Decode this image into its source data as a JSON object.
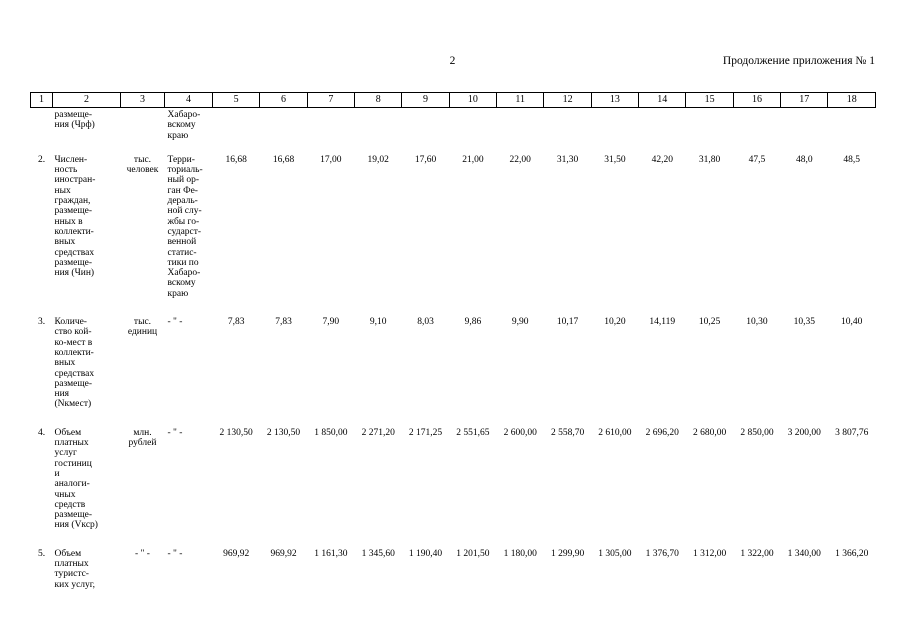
{
  "page": {
    "number": "2",
    "continuation_note": "Продолжение приложения № 1"
  },
  "table": {
    "column_numbers": [
      "1",
      "2",
      "3",
      "4",
      "5",
      "6",
      "7",
      "8",
      "9",
      "10",
      "11",
      "12",
      "13",
      "14",
      "15",
      "16",
      "17",
      "18"
    ],
    "rows": [
      {
        "num": "",
        "indicator": "размеще-\nния (Чрф)",
        "unit": "",
        "source": "Хабаро-\nвскому\nкраю",
        "values": [
          "",
          "",
          "",
          "",
          "",
          "",
          "",
          "",
          "",
          "",
          "",
          "",
          "",
          ""
        ]
      },
      {
        "num": "2.",
        "indicator": "Числен-\nность\nиностран-\nных\nграждан,\nразмеще-\nнных в\nколлекти-\nвных\nсредствах\nразмеще-\nния (Чин)",
        "unit": "тыс.\nчеловек",
        "source": "Терри-\nториаль-\nный ор-\nган Фе-\nдераль-\nной слу-\nжбы го-\nсударст-\nвенной\nстатис-\nтики по\nХабаро-\nвскому\nкраю",
        "values": [
          "16,68",
          "16,68",
          "17,00",
          "19,02",
          "17,60",
          "21,00",
          "22,00",
          "31,30",
          "31,50",
          "42,20",
          "31,80",
          "47,5",
          "48,0",
          "48,5"
        ]
      },
      {
        "num": "3.",
        "indicator": "Количе-\nство кой-\nко-мест в\nколлекти-\nвных\nсредствах\nразмеще-\nния\n(Nкмест)",
        "unit": "тыс.\nединиц",
        "source": "- \" -",
        "values": [
          "7,83",
          "7,83",
          "7,90",
          "9,10",
          "8,03",
          "9,86",
          "9,90",
          "10,17",
          "10,20",
          "14,119",
          "10,25",
          "10,30",
          "10,35",
          "10,40"
        ]
      },
      {
        "num": "4.",
        "indicator": "Объем\nплатных\nуслуг\nгостиниц\nи\nаналоги-\nчных\nсредств\nразмеще-\nния (Vкср)",
        "unit": "млн.\nрублей",
        "source": "- \" -",
        "values": [
          "2 130,50",
          "2 130,50",
          "1 850,00",
          "2 271,20",
          "2 171,25",
          "2 551,65",
          "2 600,00",
          "2 558,70",
          "2 610,00",
          "2 696,20",
          "2 680,00",
          "2 850,00",
          "3 200,00",
          "3 807,76"
        ]
      },
      {
        "num": "5.",
        "indicator": "Объем\nплатных\nтуристс-\nких услуг,",
        "unit": "- \" -",
        "source": "- \" -",
        "values": [
          "969,92",
          "969,92",
          "1 161,30",
          "1 345,60",
          "1 190,40",
          "1 201,50",
          "1 180,00",
          "1 299,90",
          "1 305,00",
          "1 376,70",
          "1 312,00",
          "1 322,00",
          "1 340,00",
          "1 366,20"
        ]
      }
    ]
  }
}
